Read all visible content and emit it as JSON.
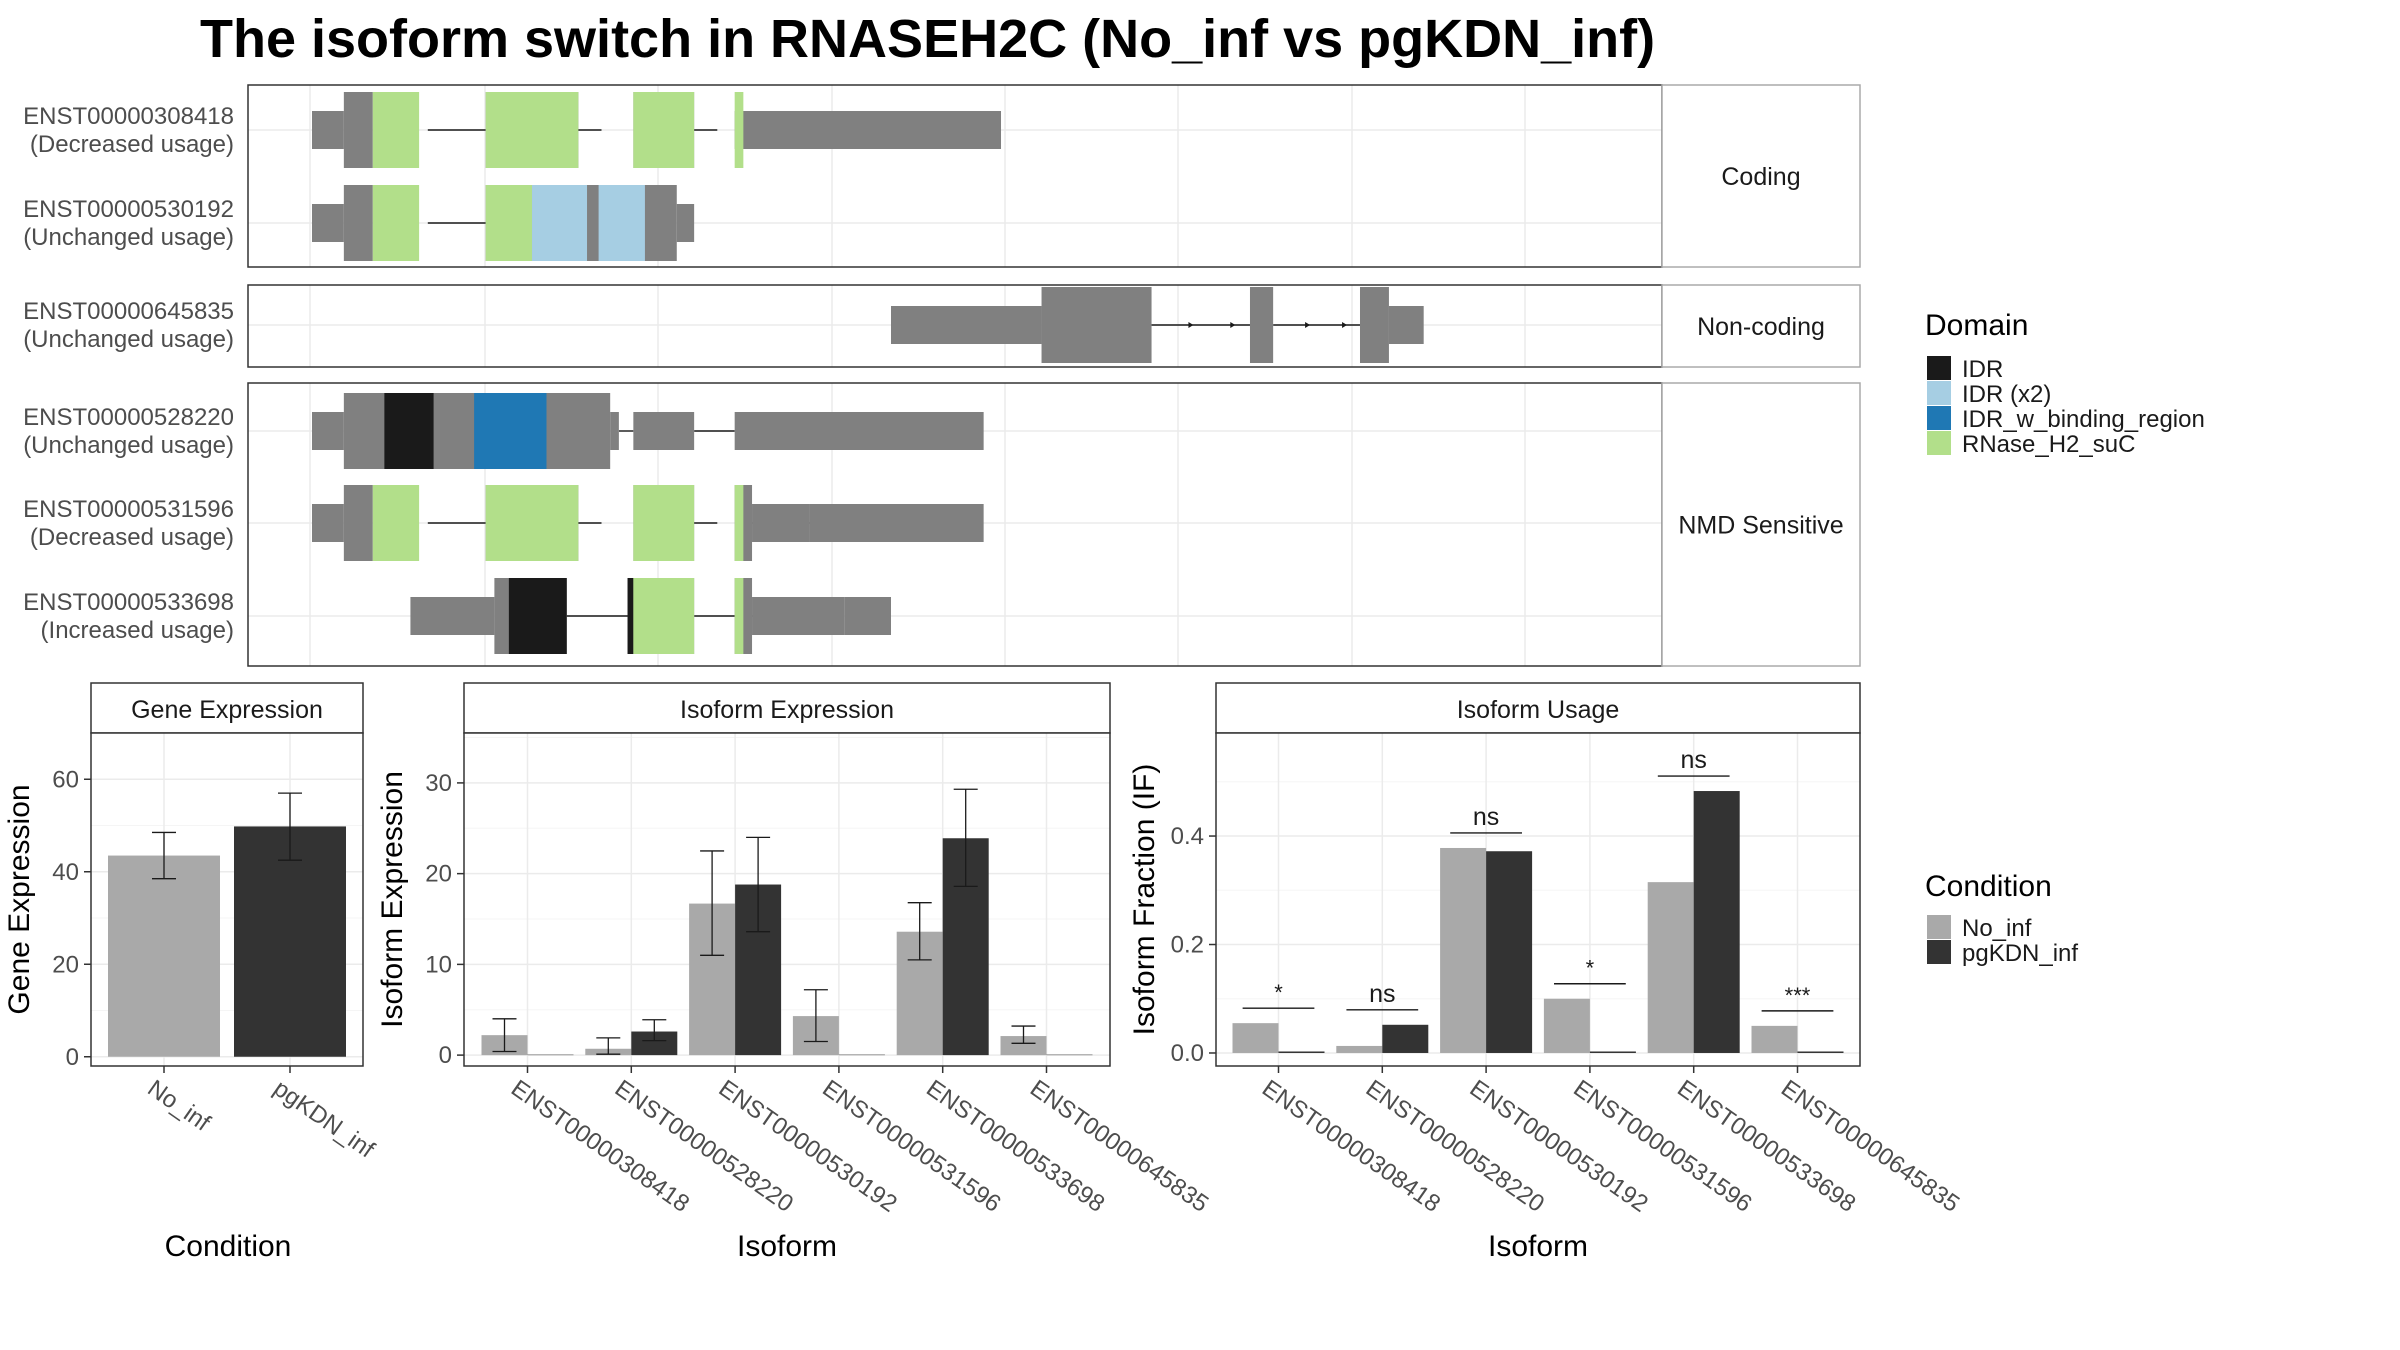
{
  "title": "The isoform switch in RNASEH2C (No_inf vs pgKDN_inf)",
  "colors": {
    "exon": "#808080",
    "no_inf": "#a9a9a9",
    "pgkdn_inf": "#333333",
    "IDR": "#1a1a1a",
    "IDR (x2)": "#a6cee3",
    "IDR_w_binding_region": "#1f78b4",
    "RNase_H2_suC": "#b2df8a",
    "grid": "#ebebeb",
    "strip_bg": "#ffffff",
    "panel_border": "#333333"
  },
  "facets": [
    {
      "name": "Coding",
      "transcripts": [
        0,
        1
      ]
    },
    {
      "name": "Non-coding",
      "transcripts": [
        2
      ]
    },
    {
      "name": "NMD Sensitive",
      "transcripts": [
        3,
        4,
        5
      ]
    }
  ],
  "transcripts": [
    {
      "id": "ENST00000308418",
      "usage": "(Decreased usage)",
      "introns": [
        [
          2,
          3
        ],
        [
          4,
          5
        ],
        [
          6,
          7
        ]
      ],
      "exons": [
        [
          0,
          0.55,
          "u"
        ],
        [
          0.55,
          1.05,
          "c"
        ],
        [
          3,
          4.6,
          "c"
        ],
        [
          5.55,
          6.6,
          "c"
        ],
        [
          7.3,
          11.9,
          "u"
        ]
      ],
      "domains": [
        [
          1.05,
          1.85,
          "RNase_H2_suC"
        ],
        [
          3,
          4.6,
          "RNase_H2_suC"
        ],
        [
          5.55,
          6.6,
          "RNase_H2_suC"
        ],
        [
          7.3,
          7.45,
          "RNase_H2_suC"
        ]
      ]
    },
    {
      "id": "ENST00000530192",
      "usage": "(Unchanged usage)",
      "introns": [
        [
          2,
          3
        ]
      ],
      "exons": [
        [
          0,
          0.55,
          "u"
        ],
        [
          0.55,
          1.05,
          "c"
        ],
        [
          3,
          6.3,
          "c"
        ],
        [
          6.3,
          6.6,
          "u"
        ]
      ],
      "domains": [
        [
          1.05,
          1.85,
          "RNase_H2_suC"
        ],
        [
          3,
          3.8,
          "RNase_H2_suC"
        ],
        [
          3.8,
          4.75,
          "IDR (x2)"
        ],
        [
          4.95,
          5.75,
          "IDR (x2)"
        ]
      ]
    },
    {
      "id": "ENST00000645835",
      "usage": "(Unchanged usage)",
      "introns": [
        [
          14.5,
          16.2
        ],
        [
          16.6,
          18.1
        ]
      ],
      "exons": [
        [
          10,
          12.6,
          "u"
        ],
        [
          12.6,
          14.5,
          "c"
        ],
        [
          16.2,
          16.6,
          "c"
        ],
        [
          18.1,
          18.6,
          "c"
        ],
        [
          18.6,
          19.2,
          "u"
        ]
      ],
      "domains": []
    },
    {
      "id": "ENST00000528220",
      "usage": "(Unchanged usage)",
      "introns": [
        [
          5.3,
          5.55
        ],
        [
          6.6,
          7.3
        ]
      ],
      "exons": [
        [
          0,
          0.55,
          "u"
        ],
        [
          0.55,
          5.15,
          "c"
        ],
        [
          5.15,
          5.3,
          "u"
        ],
        [
          5.55,
          6.6,
          "u"
        ],
        [
          7.3,
          11.6,
          "u"
        ]
      ],
      "domains": [
        [
          1.25,
          2.1,
          "IDR"
        ],
        [
          2.8,
          4.05,
          "IDR_w_binding_region"
        ]
      ]
    },
    {
      "id": "ENST00000531596",
      "usage": "(Decreased usage)",
      "introns": [
        [
          2,
          3
        ],
        [
          4,
          5
        ],
        [
          6,
          7
        ],
        [
          7.6,
          8.6
        ]
      ],
      "exons": [
        [
          0,
          0.55,
          "u"
        ],
        [
          0.55,
          1.05,
          "c"
        ],
        [
          3,
          4.6,
          "c"
        ],
        [
          5.55,
          6.6,
          "c"
        ],
        [
          7.3,
          7.6,
          "c"
        ],
        [
          7.6,
          8.6,
          "u"
        ],
        [
          8.6,
          11.6,
          "u"
        ]
      ],
      "domains": [
        [
          1.05,
          1.85,
          "RNase_H2_suC"
        ],
        [
          3,
          4.6,
          "RNase_H2_suC"
        ],
        [
          5.55,
          6.6,
          "RNase_H2_suC"
        ],
        [
          7.3,
          7.45,
          "RNase_H2_suC"
        ]
      ]
    },
    {
      "id": "ENST00000533698",
      "usage": "(Increased usage)",
      "introns": [
        [
          4.4,
          5.55
        ],
        [
          6.6,
          7.3
        ],
        [
          7.6,
          8.6
        ]
      ],
      "exons": [
        [
          1.7,
          3.15,
          "u"
        ],
        [
          3.15,
          4.4,
          "c"
        ],
        [
          5.45,
          6.6,
          "c"
        ],
        [
          7.3,
          7.6,
          "c"
        ],
        [
          7.6,
          9.2,
          "u"
        ],
        [
          9.2,
          10,
          "u"
        ]
      ],
      "domains": [
        [
          3.4,
          4.4,
          "IDR"
        ],
        [
          5.45,
          5.55,
          "IDR"
        ],
        [
          5.55,
          6.6,
          "RNase_H2_suC"
        ],
        [
          7.3,
          7.45,
          "RNase_H2_suC"
        ]
      ]
    }
  ],
  "domain_legend": {
    "title": "Domain",
    "entries": [
      "IDR",
      "IDR (x2)",
      "IDR_w_binding_region",
      "RNase_H2_suC"
    ]
  },
  "condition_legend": {
    "title": "Condition",
    "entries": [
      "No_inf",
      "pgKDN_inf"
    ]
  },
  "chart_data": [
    {
      "type": "bar",
      "title": "Gene Expression",
      "xlabel": "Condition",
      "ylabel": "Gene Expression",
      "categories": [
        "No_inf",
        "pgKDN_inf"
      ],
      "values": [
        43.5,
        49.8
      ],
      "errors": [
        [
          38.5,
          48.5
        ],
        [
          42.5,
          57.0
        ]
      ],
      "ylim": [
        -2,
        70
      ],
      "yticks": [
        0,
        20,
        40,
        60
      ]
    },
    {
      "type": "bar",
      "title": "Isoform Expression",
      "xlabel": "Isoform",
      "ylabel": "Isoform Expression",
      "categories": [
        "ENST00000308418",
        "ENST00000528220",
        "ENST00000530192",
        "ENST00000531596",
        "ENST00000533698",
        "ENST00000645835"
      ],
      "series": [
        {
          "name": "No_inf",
          "values": [
            2.2,
            0.7,
            16.7,
            4.3,
            13.6,
            2.1
          ],
          "errors": [
            [
              0.4,
              4.0
            ],
            [
              0.1,
              1.9
            ],
            [
              11.0,
              22.5
            ],
            [
              1.5,
              7.2
            ],
            [
              10.5,
              16.8
            ],
            [
              1.3,
              3.2
            ]
          ]
        },
        {
          "name": "pgKDN_inf",
          "values": [
            0.05,
            2.6,
            18.8,
            0.05,
            23.9,
            0.05
          ],
          "errors": [
            null,
            [
              1.6,
              3.9
            ],
            [
              13.6,
              24.0
            ],
            null,
            [
              18.6,
              29.3
            ],
            null
          ]
        }
      ],
      "ylim": [
        -1.2,
        35.5
      ],
      "yticks": [
        0,
        10,
        20,
        30
      ]
    },
    {
      "type": "bar",
      "title": "Isoform Usage",
      "xlabel": "Isoform",
      "ylabel": "Isoform Fraction (IF)",
      "categories": [
        "ENST00000308418",
        "ENST00000528220",
        "ENST00000530192",
        "ENST00000531596",
        "ENST00000533698",
        "ENST00000645835"
      ],
      "series": [
        {
          "name": "No_inf",
          "values": [
            0.055,
            0.013,
            0.378,
            0.1,
            0.315,
            0.05
          ]
        },
        {
          "name": "pgKDN_inf",
          "values": [
            0.0,
            0.052,
            0.372,
            0.0,
            0.483,
            0.0
          ]
        }
      ],
      "significance": [
        "*",
        "ns",
        "ns",
        "*",
        "ns",
        "***"
      ],
      "ylim": [
        -0.024,
        0.59
      ],
      "yticks": [
        0.0,
        0.2,
        0.4
      ],
      "ytick_labels": [
        "0.0",
        "0.2",
        "0.4"
      ]
    }
  ]
}
